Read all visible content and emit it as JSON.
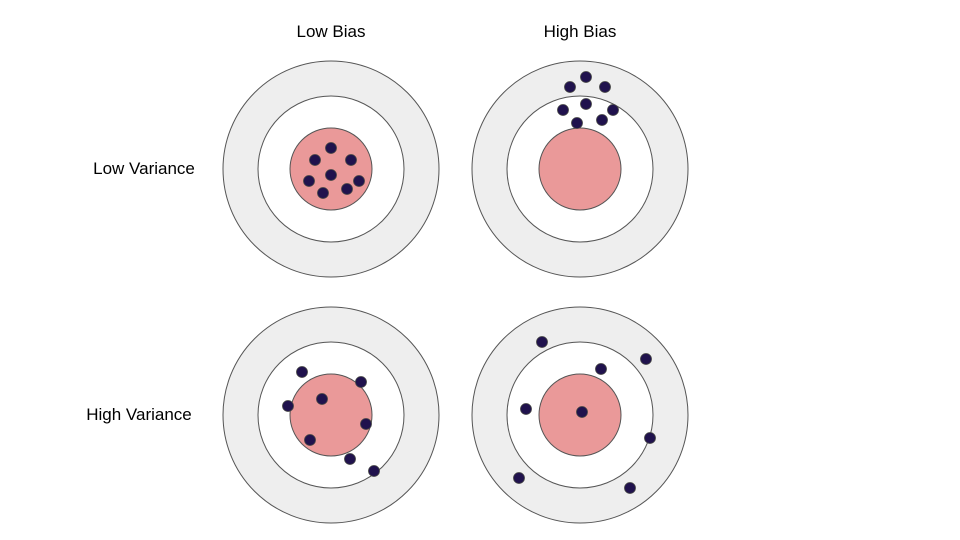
{
  "columns": {
    "low_bias": "Low Bias",
    "high_bias": "High Bias"
  },
  "rows": {
    "low_variance": "Low Variance",
    "high_variance": "High Variance"
  },
  "colors": {
    "outer_ring": "#eeeeee",
    "middle_ring": "#ffffff",
    "bullseye": "#ea9999",
    "outline": "#555555",
    "dot": "#20124d"
  },
  "targets": [
    {
      "name": "low-bias-low-variance",
      "dots": [
        [
          0,
          -21
        ],
        [
          -16,
          -9
        ],
        [
          20,
          -9
        ],
        [
          0,
          6
        ],
        [
          -22,
          12
        ],
        [
          28,
          12
        ],
        [
          -8,
          24
        ],
        [
          16,
          20
        ]
      ]
    },
    {
      "name": "high-bias-low-variance",
      "dots": [
        [
          6,
          -92
        ],
        [
          -10,
          -82
        ],
        [
          25,
          -82
        ],
        [
          -17,
          -59
        ],
        [
          6,
          -65
        ],
        [
          33,
          -59
        ],
        [
          -3,
          -46
        ],
        [
          22,
          -49
        ]
      ]
    },
    {
      "name": "low-bias-high-variance",
      "dots": [
        [
          -29,
          -43
        ],
        [
          30,
          -33
        ],
        [
          -43,
          -9
        ],
        [
          -9,
          -16
        ],
        [
          35,
          9
        ],
        [
          -21,
          25
        ],
        [
          19,
          44
        ],
        [
          43,
          56
        ]
      ]
    },
    {
      "name": "high-bias-high-variance",
      "dots": [
        [
          -38,
          -73
        ],
        [
          66,
          -56
        ],
        [
          21,
          -46
        ],
        [
          -54,
          -6
        ],
        [
          2,
          -3
        ],
        [
          70,
          23
        ],
        [
          -61,
          63
        ],
        [
          50,
          73
        ]
      ]
    }
  ]
}
